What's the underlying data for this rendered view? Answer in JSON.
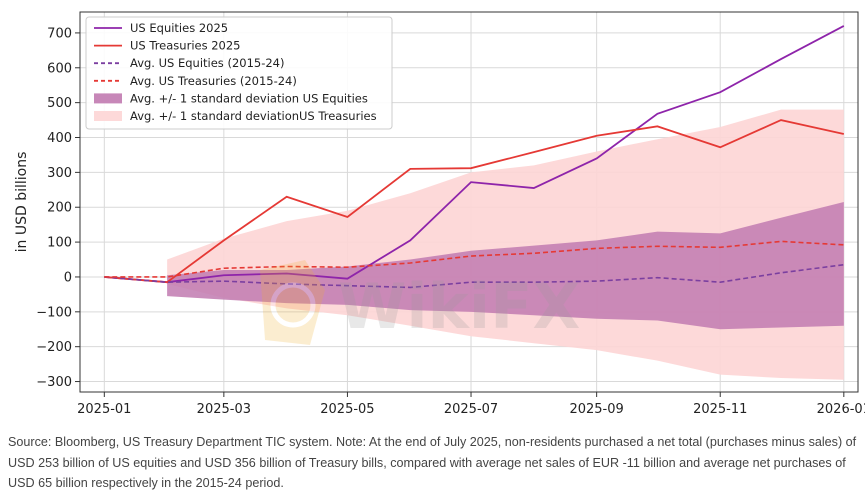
{
  "chart_data": {
    "type": "line",
    "ylabel": "in USD billions",
    "ylim": [
      -330,
      760
    ],
    "xlim": [
      "2024-12-20",
      "2026-01-08"
    ],
    "yticks": [
      -300,
      -200,
      -100,
      0,
      100,
      200,
      300,
      400,
      500,
      600,
      700
    ],
    "ytick_labels": [
      "−300",
      "−200",
      "−100",
      "0",
      "100",
      "200",
      "300",
      "400",
      "500",
      "600",
      "700"
    ],
    "xticks": [
      "2025-01-01",
      "2025-03-01",
      "2025-05-01",
      "2025-07-01",
      "2025-09-01",
      "2025-11-01",
      "2026-01-01"
    ],
    "xtick_labels": [
      "2025-01",
      "2025-03",
      "2025-05",
      "2025-07",
      "2025-09",
      "2025-11",
      "2026-01"
    ],
    "grid": true,
    "legend_position": "upper-left",
    "dates": [
      "2025-01-01",
      "2025-02-01",
      "2025-03-01",
      "2025-04-01",
      "2025-05-01",
      "2025-06-01",
      "2025-07-01",
      "2025-08-01",
      "2025-09-01",
      "2025-10-01",
      "2025-11-01",
      "2025-12-01",
      "2026-01-01"
    ],
    "series": [
      {
        "name": "US Equities 2025",
        "style": "solid",
        "color": "#8e24aa",
        "values": [
          0,
          -15,
          5,
          10,
          -5,
          105,
          272,
          255,
          340,
          468,
          530,
          625,
          720
        ]
      },
      {
        "name": "US Treasuries 2025",
        "style": "solid",
        "color": "#e53935",
        "values": [
          0,
          -15,
          105,
          230,
          172,
          310,
          312,
          358,
          405,
          432,
          372,
          450,
          410
        ]
      },
      {
        "name": "Avg. US Equities (2015-24)",
        "style": "dashed",
        "color": "#7b3fa0",
        "values": [
          0,
          -15,
          -12,
          -20,
          -25,
          -30,
          -15,
          -15,
          -12,
          -2,
          -15,
          12,
          35
        ]
      },
      {
        "name": "Avg. US Treasuries (2015-24)",
        "style": "dashed",
        "color": "#e53935",
        "values": [
          0,
          0,
          25,
          30,
          28,
          40,
          60,
          68,
          82,
          88,
          85,
          102,
          92
        ]
      }
    ],
    "bands": [
      {
        "name": "Avg. +/- 1 standard deviation US Equities",
        "color": "#c17ab0",
        "x": [
          "2025-02-01",
          "2025-03-01",
          "2025-04-01",
          "2025-05-01",
          "2025-06-01",
          "2025-07-01",
          "2025-08-01",
          "2025-09-01",
          "2025-10-01",
          "2025-11-01",
          "2025-12-01",
          "2026-01-01"
        ],
        "upper": [
          5,
          20,
          20,
          30,
          50,
          75,
          90,
          105,
          130,
          125,
          170,
          215
        ],
        "lower": [
          -55,
          -65,
          -75,
          -80,
          -95,
          -100,
          -110,
          -120,
          -125,
          -150,
          -145,
          -140
        ]
      },
      {
        "name": "Avg. +/- 1 standard deviationUS Treasuries",
        "color": "#fdd5d5",
        "x": [
          "2025-02-01",
          "2025-03-01",
          "2025-04-01",
          "2025-05-01",
          "2025-06-01",
          "2025-07-01",
          "2025-08-01",
          "2025-09-01",
          "2025-10-01",
          "2025-11-01",
          "2025-12-01",
          "2026-01-01"
        ],
        "upper": [
          50,
          110,
          160,
          190,
          240,
          300,
          320,
          360,
          395,
          430,
          480,
          480
        ],
        "lower": [
          -20,
          -60,
          -90,
          -110,
          -140,
          -170,
          -190,
          -210,
          -240,
          -280,
          -290,
          -295
        ]
      }
    ]
  },
  "watermark": {
    "text": "WikiFX"
  },
  "source_note": "Source: Bloomberg, US Treasury Department TIC system. Note: At the end of July 2025, non-residents purchased a net total (purchases minus sales) of USD 253 billion of US equities and USD 356 billion of Treasury bills, compared with average net sales of EUR -11 billion and average net purchases of USD 65 billion respectively in the 2015-24 period."
}
